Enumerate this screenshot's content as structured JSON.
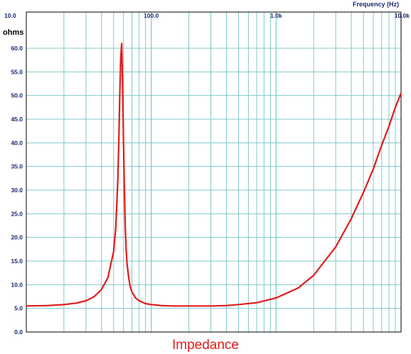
{
  "chart_data": {
    "type": "line",
    "title": "Impedance",
    "xlabel": "Frequency   (Hz)",
    "ylabel": "ohms",
    "x_scale": "log",
    "xlim": [
      10,
      10000
    ],
    "ylim": [
      0,
      65
    ],
    "x_tick_labels": [
      {
        "value": 10,
        "label": "10.0"
      },
      {
        "value": 100,
        "label": "100.0"
      },
      {
        "value": 1000,
        "label": "1.0k"
      },
      {
        "value": 10000,
        "label": "10.0k"
      }
    ],
    "y_tick_labels": [
      "0.0",
      "5.0",
      "10.0",
      "15.0",
      "20.0",
      "25.0",
      "30.0",
      "35.0",
      "40.0",
      "45.0",
      "50.0",
      "55.0",
      "60.0"
    ],
    "y_tick_values": [
      0,
      5,
      10,
      15,
      20,
      25,
      30,
      35,
      40,
      45,
      50,
      55,
      60
    ],
    "grid": true,
    "colors": {
      "grid": "#7fc8c8",
      "frame": "#000000",
      "line": "#e31b1b",
      "tick_text": "#1a2a6c"
    },
    "series": [
      {
        "color": "#e31b1b",
        "x": [
          10,
          15,
          20,
          25,
          30,
          35,
          40,
          45,
          50,
          52,
          54,
          55,
          56,
          57,
          58,
          59,
          60,
          61,
          62,
          63,
          64,
          66,
          68,
          70,
          75,
          80,
          90,
          100,
          120,
          150,
          200,
          300,
          400,
          500,
          700,
          1000,
          1500,
          2000,
          3000,
          4000,
          5000,
          6000,
          7000,
          8000,
          9000,
          10000
        ],
        "y": [
          5.5,
          5.6,
          5.8,
          6.1,
          6.6,
          7.5,
          9.0,
          11.5,
          17.0,
          22.0,
          32.0,
          40.0,
          50.0,
          58.0,
          61.0,
          52.0,
          40.0,
          30.0,
          22.0,
          17.5,
          14.5,
          11.5,
          9.5,
          8.5,
          7.2,
          6.6,
          6.0,
          5.8,
          5.6,
          5.5,
          5.5,
          5.5,
          5.6,
          5.8,
          6.2,
          7.2,
          9.3,
          12.0,
          18.0,
          24.0,
          29.5,
          34.5,
          39.5,
          43.5,
          47.5,
          50.5
        ]
      }
    ]
  }
}
